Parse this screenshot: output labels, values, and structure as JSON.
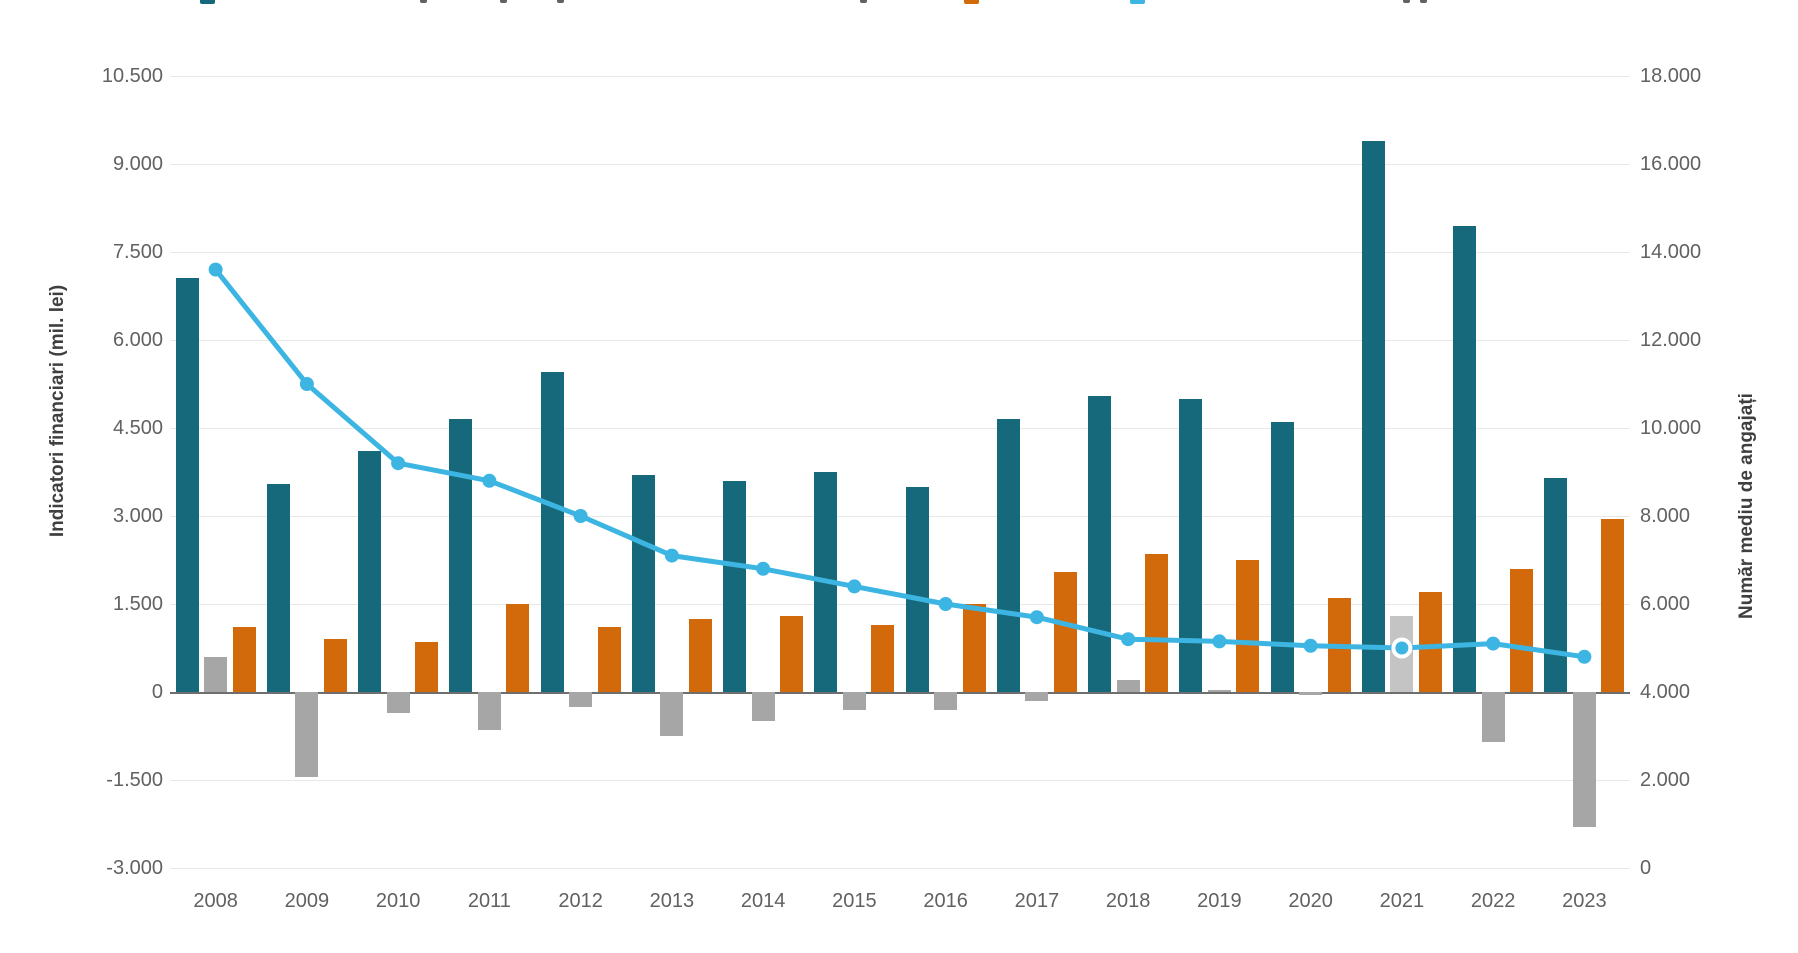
{
  "chart_data": {
    "type": "combo-bar-line",
    "categories": [
      "2008",
      "2009",
      "2010",
      "2011",
      "2012",
      "2013",
      "2014",
      "2015",
      "2016",
      "2017",
      "2018",
      "2019",
      "2020",
      "2021",
      "2022",
      "2023"
    ],
    "left_axis": {
      "title": "Indicatori financiari (mil. lei)",
      "ticks": [
        "10.500",
        "9.000",
        "7.500",
        "6.000",
        "4.500",
        "3.000",
        "1.500",
        "0",
        "-1.500",
        "-3.000"
      ],
      "min": -3000,
      "max": 10500,
      "step": 1500
    },
    "right_axis": {
      "title": "Număr mediu de angajați",
      "ticks": [
        "18.000",
        "16.000",
        "14.000",
        "12.000",
        "10.000",
        "8.000",
        "6.000",
        "4.000",
        "2.000",
        "0"
      ],
      "min": 0,
      "max": 18000,
      "step": 2000
    },
    "series": [
      {
        "id": "financial-bar-1",
        "type": "bar",
        "axis": "left",
        "color": "#16697a",
        "values": [
          7050,
          3550,
          4100,
          4650,
          5450,
          3700,
          3600,
          3750,
          3500,
          4650,
          5050,
          5000,
          4600,
          9400,
          7950,
          3650
        ]
      },
      {
        "id": "financial-bar-2",
        "type": "bar",
        "axis": "left",
        "color": "#a6a6a6",
        "highlight_color": "#c4c4c4",
        "values": [
          600,
          -1450,
          -350,
          -650,
          -250,
          -750,
          -500,
          -300,
          -300,
          -150,
          200,
          40,
          -50,
          1300,
          -850,
          -2300
        ]
      },
      {
        "id": "financial-bar-3",
        "type": "bar",
        "axis": "left",
        "color": "#d2690b",
        "values": [
          1100,
          900,
          850,
          1500,
          1100,
          1250,
          1300,
          1150,
          1500,
          2050,
          2350,
          2250,
          1600,
          1700,
          2100,
          2950
        ]
      },
      {
        "id": "employees-line",
        "type": "line",
        "axis": "right",
        "color": "#3cb5e2",
        "values": [
          13600,
          11000,
          9200,
          8800,
          8000,
          7100,
          6800,
          6400,
          6000,
          5700,
          5200,
          5150,
          5050,
          5000,
          5100,
          4800
        ]
      }
    ],
    "highlighted_category": "2021",
    "grid": true,
    "legend_position": "top (cropped out of frame)"
  },
  "legend": {
    "note": "legend row cut off at top edge of screenshot; only bottom slivers of color chips and text visible",
    "fragments": [
      {
        "kind": "chip",
        "color": "#16697a",
        "x": 200
      },
      {
        "kind": "mark",
        "x": 420
      },
      {
        "kind": "mark",
        "x": 500
      },
      {
        "kind": "mark",
        "x": 557
      },
      {
        "kind": "mark",
        "x": 860
      },
      {
        "kind": "chip",
        "color": "#d2690b",
        "x": 964
      },
      {
        "kind": "chip",
        "color": "#3cb5e2",
        "x": 1130
      },
      {
        "kind": "mark",
        "x": 1403
      },
      {
        "kind": "mark",
        "x": 1420
      }
    ]
  },
  "colors": {
    "teal": "#16697a",
    "orange": "#d2690b",
    "gray": "#a6a6a6",
    "gray_highlight": "#c4c4c4",
    "line_blue": "#3cb5e2",
    "gridline": "#e8e8e8",
    "zero_line": "#6e6e6e",
    "tick_text": "#616161",
    "axis_title_text": "#3f3f3f"
  }
}
